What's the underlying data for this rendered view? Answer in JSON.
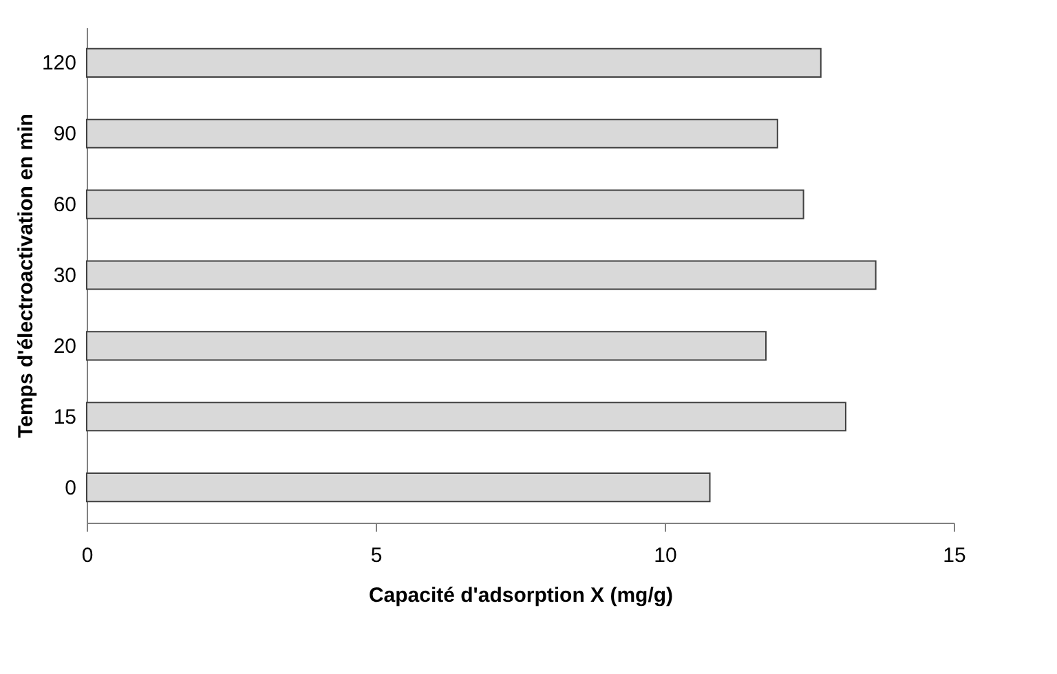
{
  "chart_data": {
    "type": "bar",
    "orientation": "horizontal",
    "xlabel": "Capacité d'adsorption X (mg/g)",
    "ylabel": "Temps d'électroactivation en min",
    "categories": [
      "120",
      "90",
      "60",
      "30",
      "20",
      "15",
      "0"
    ],
    "values": [
      12.7,
      11.95,
      12.4,
      13.65,
      11.75,
      13.13,
      10.78
    ],
    "color": "#d9d9d9",
    "xlim": [
      0,
      15
    ],
    "xticks": [
      0,
      5,
      10,
      15
    ],
    "grid": false
  }
}
